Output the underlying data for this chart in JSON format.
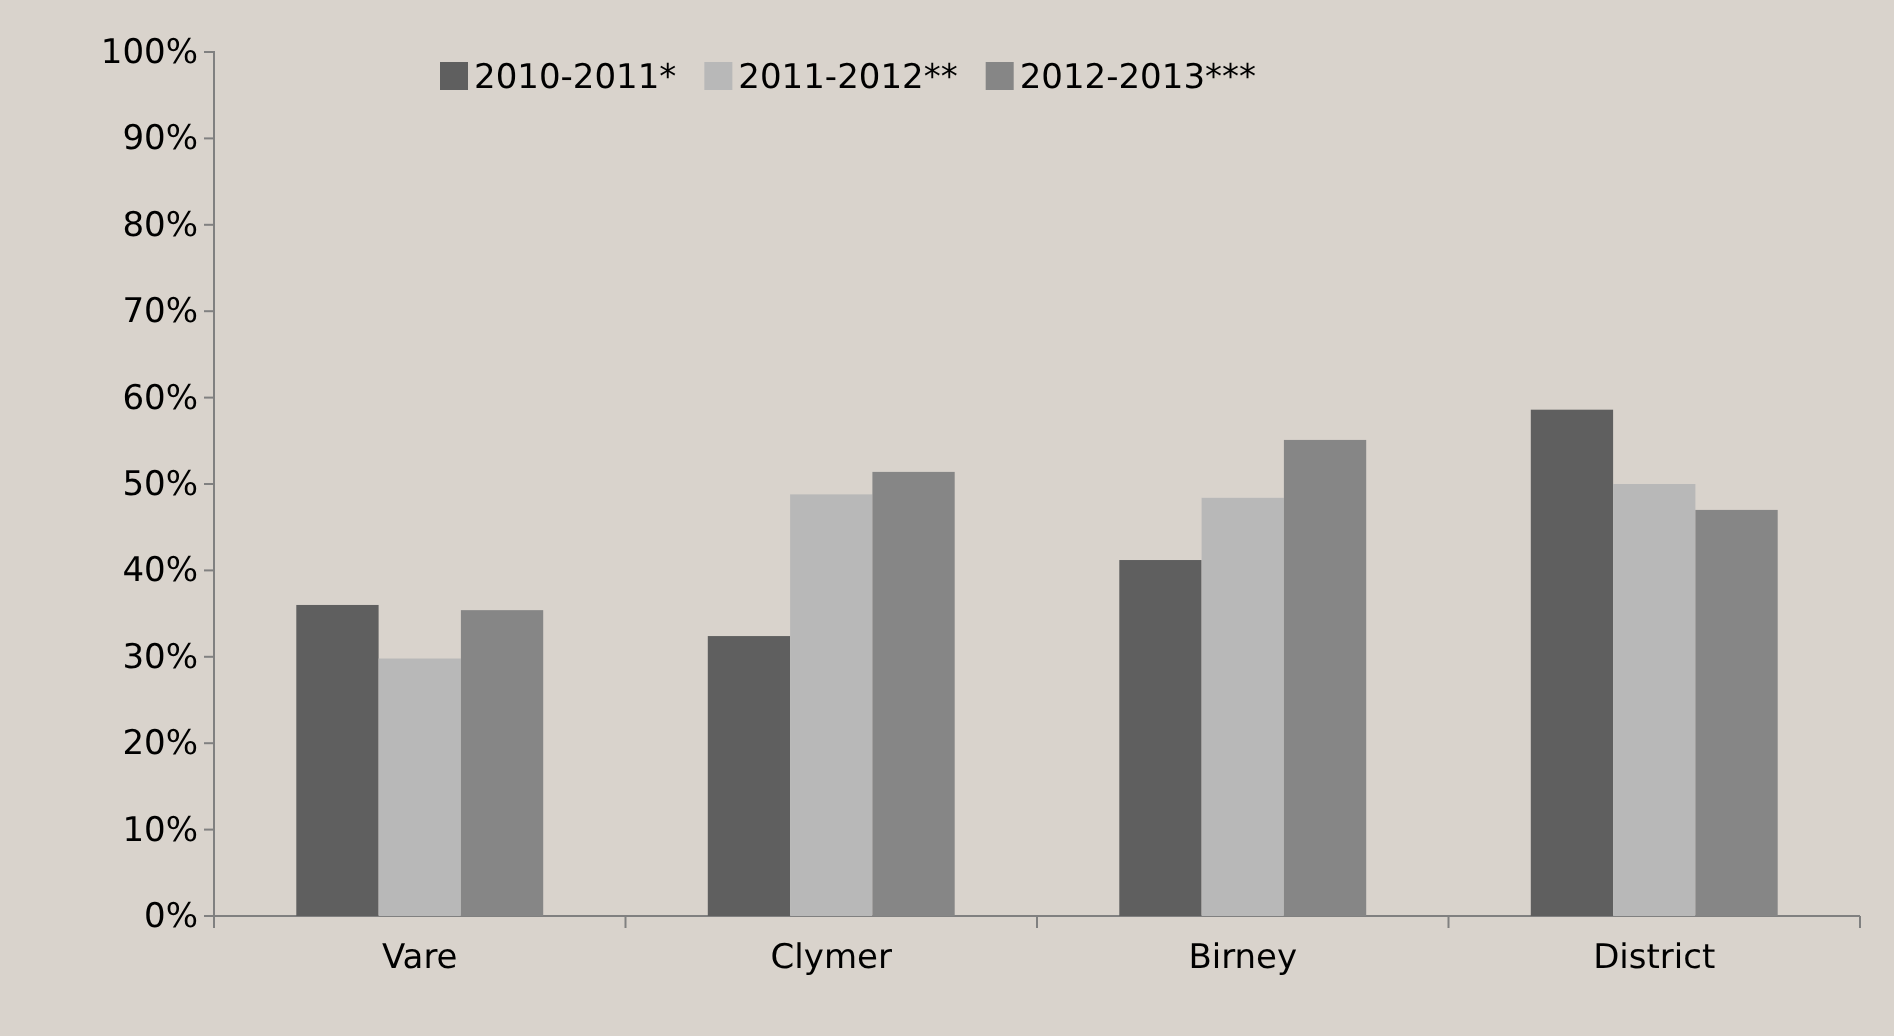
{
  "chart_data": {
    "type": "bar",
    "categories": [
      "Vare",
      "Clymer",
      "Birney",
      "District"
    ],
    "series": [
      {
        "name": "2010-2011*",
        "color": "#5f5f5f",
        "values": [
          36,
          32.4,
          41.2,
          58.6
        ]
      },
      {
        "name": "2011-2012**",
        "color": "#b8b8b8",
        "values": [
          29.8,
          48.8,
          48.4,
          50
        ]
      },
      {
        "name": "2012-2013***",
        "color": "#868686",
        "values": [
          35.4,
          51.4,
          55.1,
          47
        ]
      }
    ],
    "ylim": [
      0,
      100
    ],
    "yticks": [
      {
        "value": 0,
        "label": "0%"
      },
      {
        "value": 10,
        "label": "10%"
      },
      {
        "value": 20,
        "label": "20%"
      },
      {
        "value": 30,
        "label": "30%"
      },
      {
        "value": 40,
        "label": "40%"
      },
      {
        "value": 50,
        "label": "50%"
      },
      {
        "value": 60,
        "label": "60%"
      },
      {
        "value": 70,
        "label": "70%"
      },
      {
        "value": 80,
        "label": "80%"
      },
      {
        "value": 90,
        "label": "90%"
      },
      {
        "value": 100,
        "label": "100%"
      }
    ],
    "grid": false,
    "legend": "top"
  }
}
